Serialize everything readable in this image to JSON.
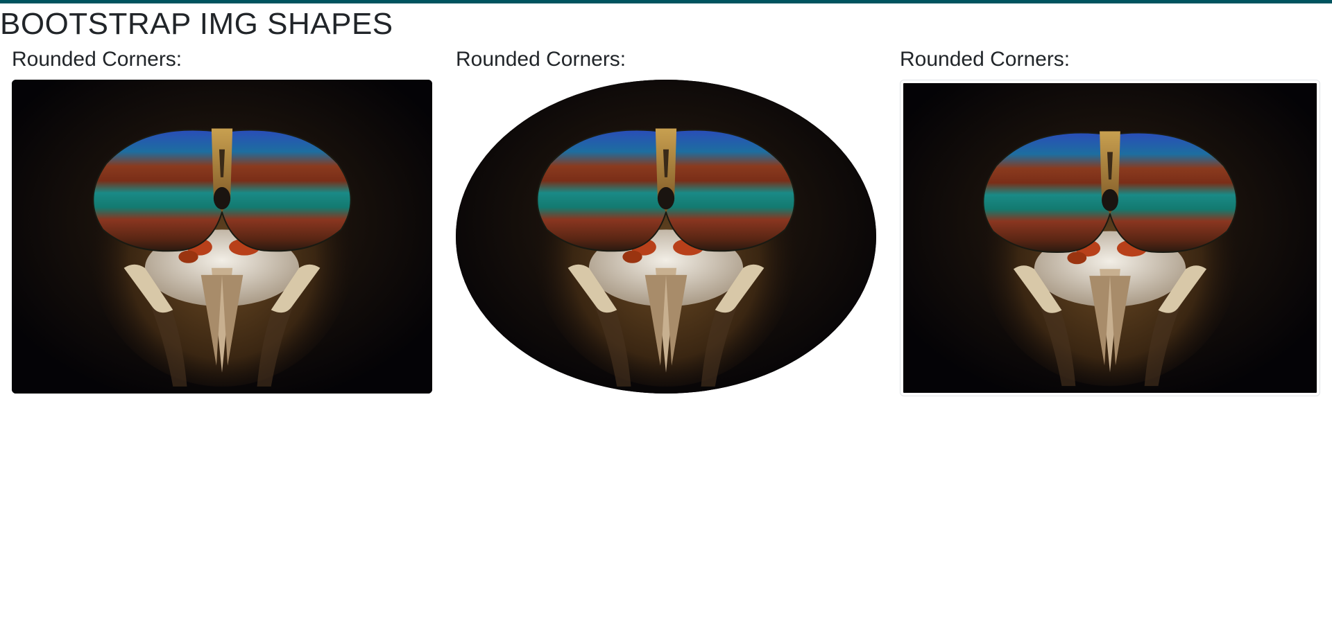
{
  "page": {
    "title": "BOOTSTRAP IMG SHAPES",
    "accent_color": "#00545f"
  },
  "images": [
    {
      "heading": "Rounded Corners:",
      "shape": "rounded",
      "subject": "horsefly-head-photo"
    },
    {
      "heading": "Rounded Corners:",
      "shape": "circle",
      "subject": "horsefly-head-photo"
    },
    {
      "heading": "Rounded Corners:",
      "shape": "thumbnail",
      "subject": "horsefly-head-photo"
    }
  ]
}
